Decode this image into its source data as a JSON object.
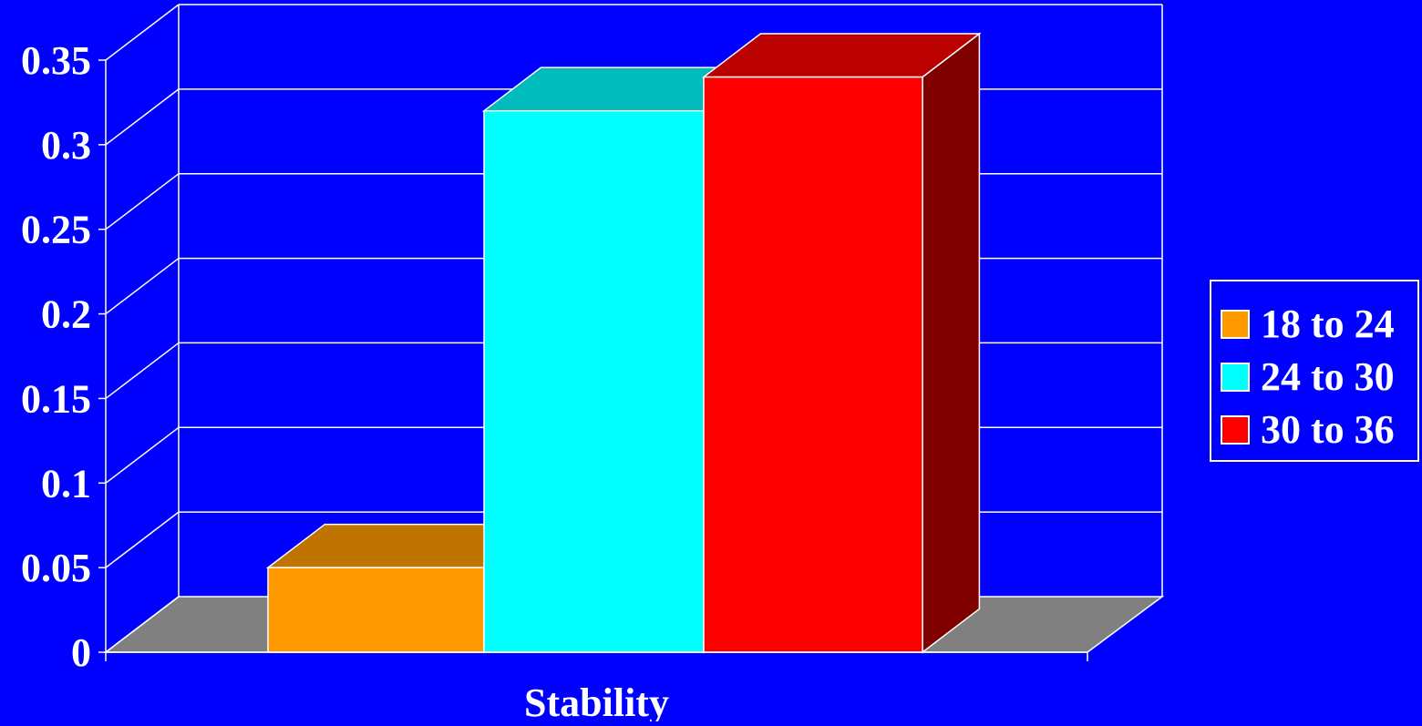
{
  "chart_data": {
    "type": "bar",
    "categories": [
      "Stability"
    ],
    "series": [
      {
        "name": "18 to 24",
        "values": [
          0.05
        ],
        "color": "#ff9900",
        "top_color": "#c07400",
        "side_color": "#c07400"
      },
      {
        "name": "24 to 30",
        "values": [
          0.32
        ],
        "color": "#00ffff",
        "top_color": "#00bbbb",
        "side_color": "#009999"
      },
      {
        "name": "30 to 36",
        "values": [
          0.34
        ],
        "color": "#ff0000",
        "top_color": "#bb0000",
        "side_color": "#800000"
      }
    ],
    "y_ticks": [
      "0",
      "0.05",
      "0.1",
      "0.15",
      "0.2",
      "0.25",
      "0.3",
      "0.35"
    ],
    "ylim": [
      0,
      0.35
    ],
    "xlabel": "",
    "ylabel": "",
    "title": "",
    "legend_position": "right",
    "grid": true,
    "style": "3d",
    "background_color": "#0000ff",
    "floor_color": "#808080"
  }
}
